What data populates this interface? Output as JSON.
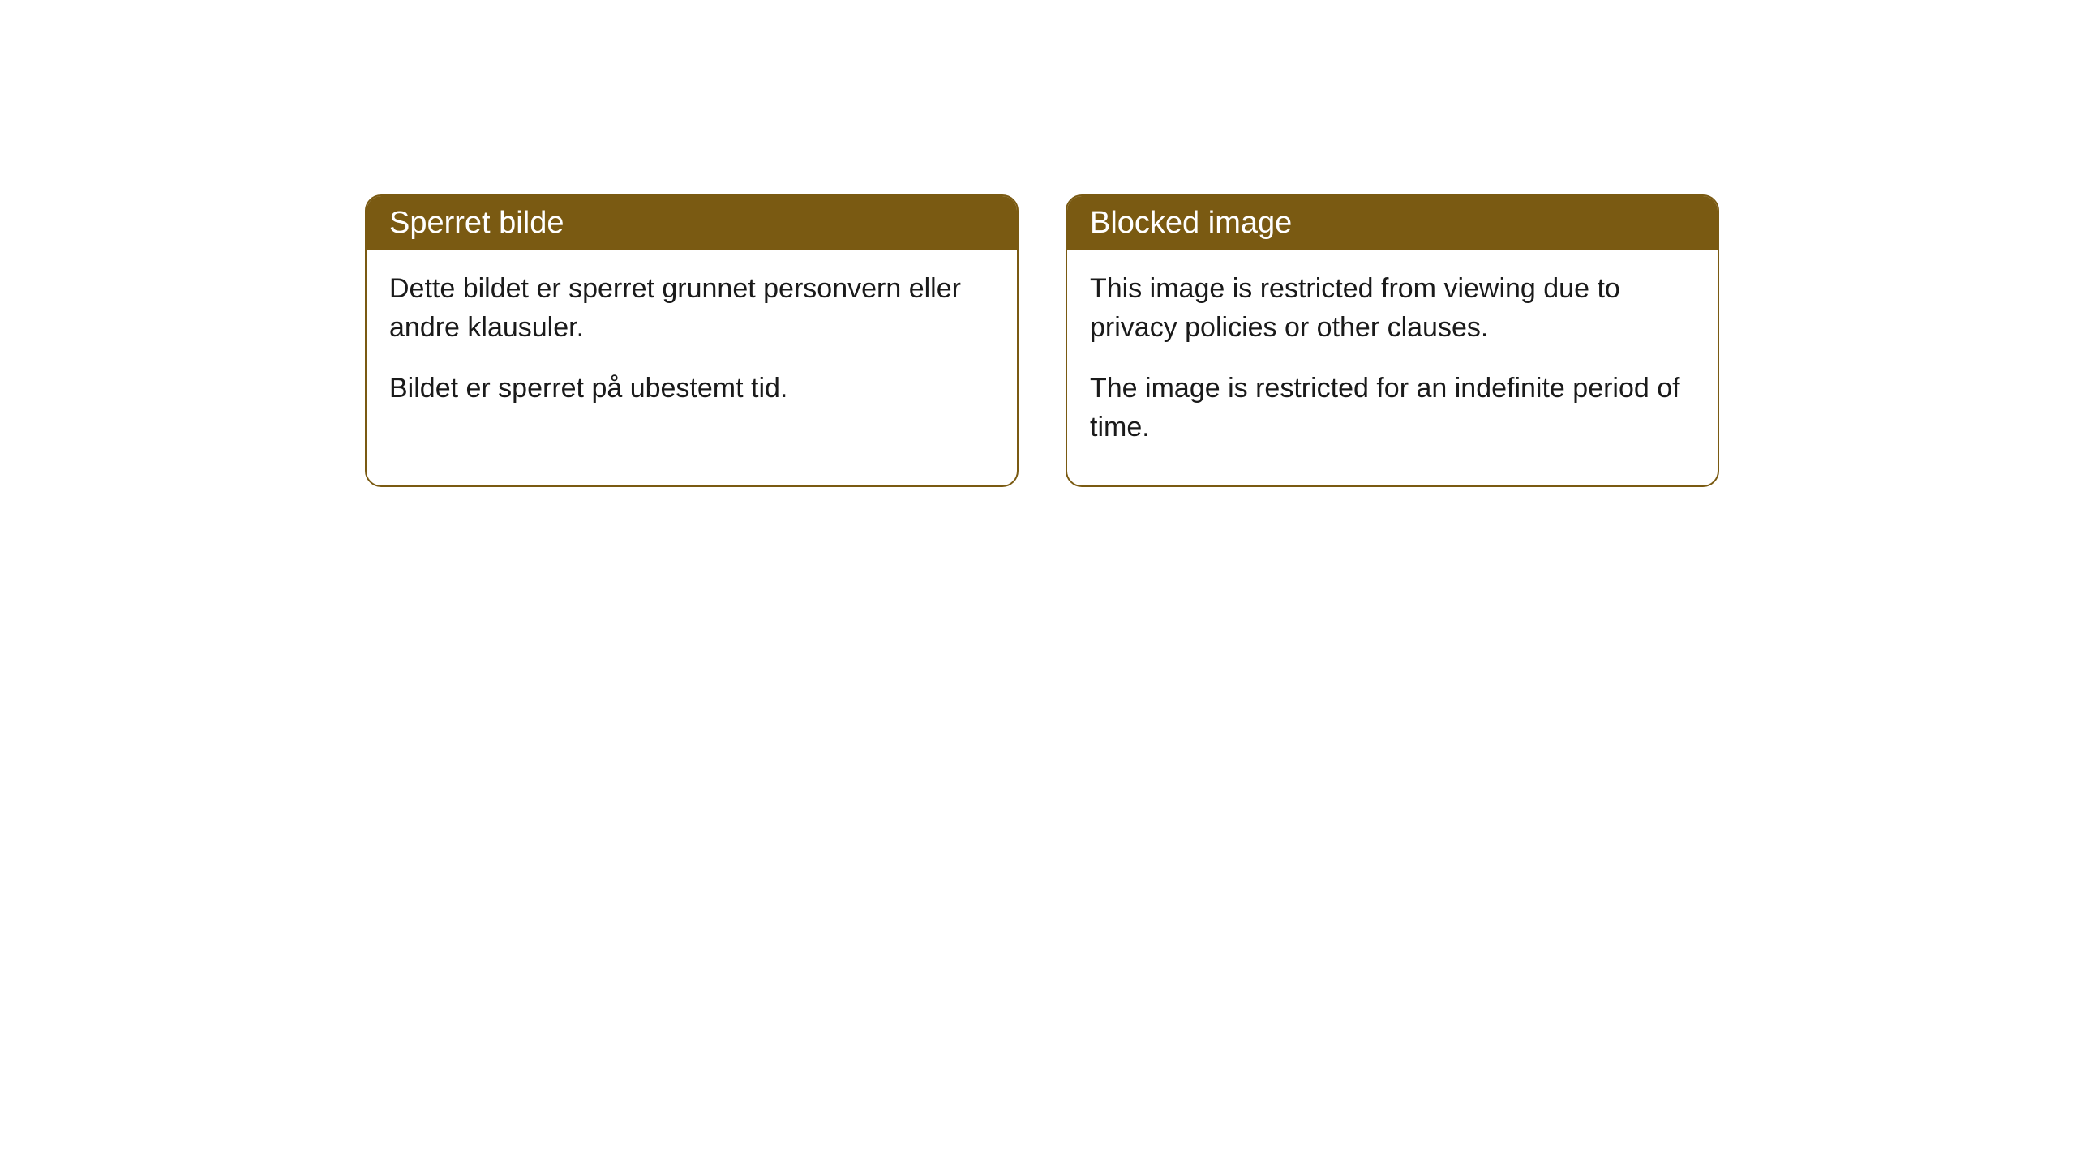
{
  "cards": [
    {
      "title": "Sperret bilde",
      "paragraph1": "Dette bildet er sperret grunnet personvern eller andre klausuler.",
      "paragraph2": "Bildet er sperret på ubestemt tid."
    },
    {
      "title": "Blocked image",
      "paragraph1": "This image is restricted from viewing due to privacy policies or other clauses.",
      "paragraph2": "The image is restricted for an indefinite period of time."
    }
  ],
  "styling": {
    "header_bg_color": "#7a5a12",
    "header_text_color": "#ffffff",
    "border_color": "#7a5a12",
    "body_bg_color": "#ffffff",
    "body_text_color": "#1a1a1a",
    "border_radius": 20,
    "header_fontsize": 38,
    "body_fontsize": 34
  }
}
